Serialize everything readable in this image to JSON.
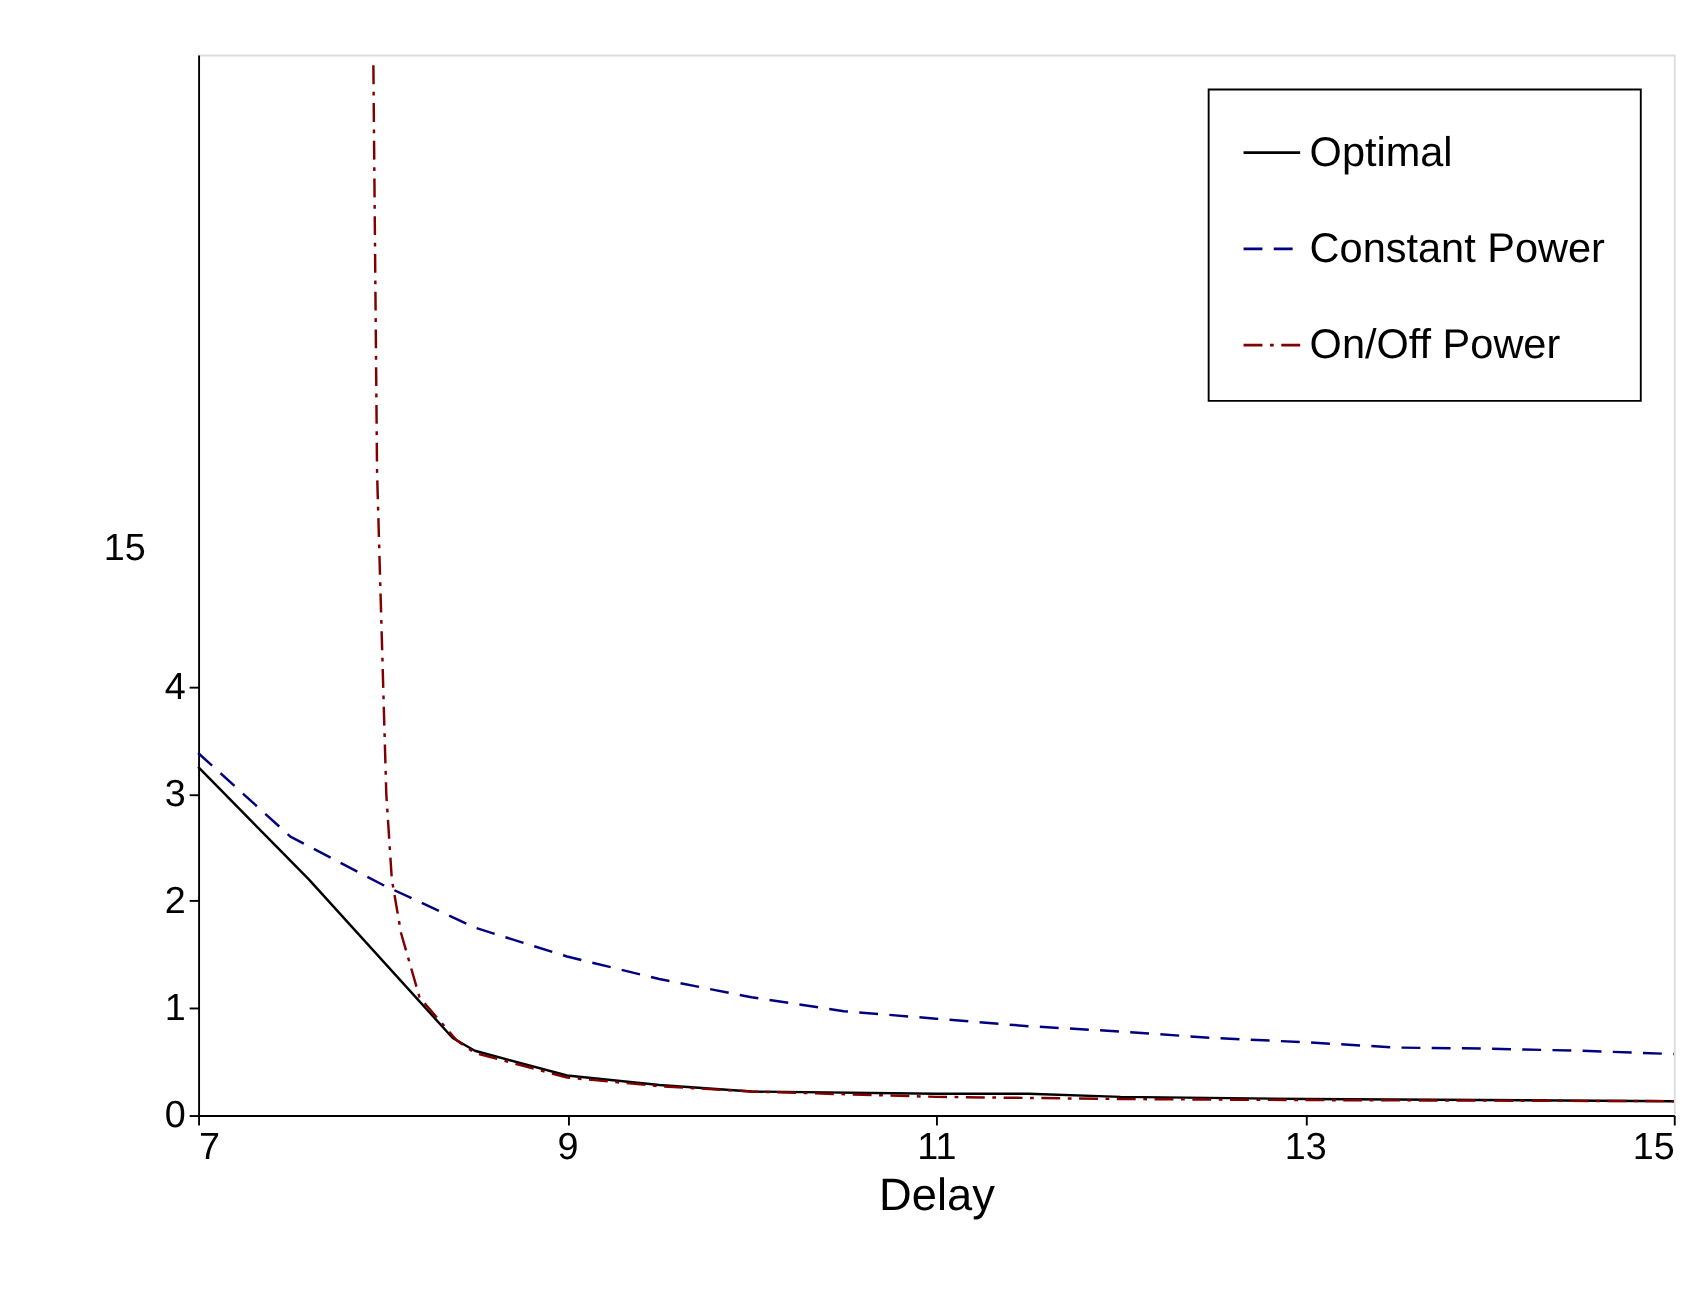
{
  "chart_data": {
    "type": "line",
    "xlabel": "Delay",
    "xlim": [
      7,
      15
    ],
    "xticks": [
      7,
      9,
      11,
      13,
      15
    ],
    "ylim": [
      0,
      9.9
    ],
    "yticks": [
      0,
      1,
      2,
      3,
      4
    ],
    "grid": false,
    "legend": "top right",
    "annotations": [
      "15"
    ],
    "series": [
      {
        "name": "Optimal",
        "color": "#000000",
        "line_style": "solid",
        "x": [
          7,
          7.6,
          8.38,
          8.5,
          9,
          9.5,
          10,
          11,
          11.5,
          12,
          13,
          15
        ],
        "values": [
          3.25,
          2.2,
          0.72,
          0.6,
          0.37,
          0.28,
          0.22,
          0.2,
          0.2,
          0.17,
          0.15,
          0.13
        ]
      },
      {
        "name": "Constant Power",
        "color": "#000080",
        "line_style": "dashed",
        "x": [
          7,
          7.5,
          8,
          8.5,
          9,
          9.5,
          10,
          10.5,
          11,
          11.5,
          12,
          12.5,
          13,
          13.5,
          14,
          14.5,
          15
        ],
        "values": [
          3.38,
          2.6,
          2.15,
          1.75,
          1.48,
          1.27,
          1.1,
          0.97,
          0.9,
          0.83,
          0.78,
          0.72,
          0.68,
          0.63,
          0.62,
          0.6,
          0.57
        ]
      },
      {
        "name": "On/Off Power",
        "color": "#800000",
        "line_style": "dashdot",
        "x": [
          7.95,
          7.97,
          7.99,
          8.02,
          8.05,
          8.1,
          8.2,
          8.4,
          8.5,
          9,
          9.5,
          10,
          11,
          12,
          13,
          15
        ],
        "values": [
          9.8,
          6.0,
          4.8,
          3.0,
          2.2,
          1.7,
          1.1,
          0.7,
          0.58,
          0.35,
          0.27,
          0.22,
          0.17,
          0.15,
          0.14,
          0.13
        ]
      }
    ]
  }
}
